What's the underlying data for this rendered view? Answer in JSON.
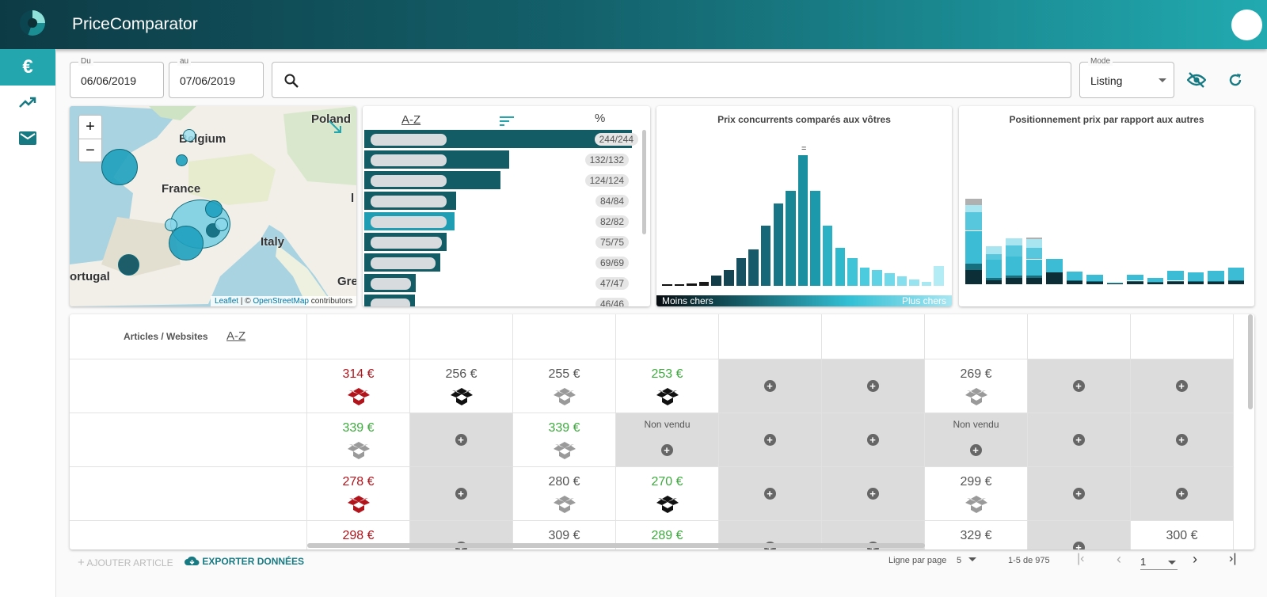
{
  "app": {
    "title": "PriceComparator"
  },
  "icons": {
    "logo": "app-logo-icon",
    "avatar": "user-avatar",
    "euro": "euro-icon",
    "trend": "trending-up-icon",
    "mail": "mail-icon",
    "search": "search-icon",
    "hide": "visibility-off-icon",
    "refresh": "refresh-icon"
  },
  "sidebar": {
    "items": [
      {
        "icon": "euro-icon",
        "label": "€"
      },
      {
        "icon": "trending-up-icon",
        "label": ""
      },
      {
        "icon": "mail-icon",
        "label": ""
      }
    ]
  },
  "filters": {
    "from_label": "Du",
    "from_value": "06/06/2019",
    "to_label": "au",
    "to_value": "07/06/2019",
    "search_placeholder": "",
    "mode_label": "Mode",
    "mode_value": "Listing"
  },
  "map": {
    "labels": {
      "poland": "Poland",
      "belgium": "Belgium",
      "france": "France",
      "italy": "Italy",
      "portugal": "ortugal",
      "gre": "Gre",
      "l": "l"
    },
    "attribution": {
      "leaflet": "Leaflet",
      "sep": " | © ",
      "osm": "OpenStreetMap",
      "contributors": " contributors"
    },
    "zoom_in": "+",
    "zoom_out": "−"
  },
  "ranking": {
    "header_az": "A-Z",
    "header_pct": "%",
    "counts": [
      "244/244",
      "132/132",
      "124/124",
      "84/84",
      "82/82",
      "75/75",
      "69/69",
      "47/47",
      "46/46"
    ],
    "fractions": [
      1.0,
      0.541,
      0.508,
      0.344,
      0.336,
      0.307,
      0.283,
      0.193,
      0.189
    ]
  },
  "chart_left": {
    "title": "Prix concurrents comparés aux vôtres",
    "marker": "=",
    "left_label": "Moins chers",
    "right_label": "Plus chers"
  },
  "chart_data": [
    {
      "type": "bar",
      "title": "Prix concurrents comparés aux vôtres",
      "values": [
        1,
        1.5,
        2,
        3,
        8,
        12,
        21,
        28,
        46,
        63,
        73,
        100,
        73,
        46,
        29,
        21,
        14,
        12,
        10,
        7,
        5,
        3,
        15
      ],
      "colors": [
        "#111111",
        "#111111",
        "#111111",
        "#1a1a1a",
        "#123c48",
        "#134553",
        "#155160",
        "#175b6a",
        "#166778",
        "#177586",
        "#198696",
        "#1a8fa0",
        "#1c9aac",
        "#2bb0c4",
        "#2fb9cd",
        "#3ec3d7",
        "#4ccbdf",
        "#5fd3e5",
        "#72d9ea",
        "#86dfee",
        "#97e3f0",
        "#a8e8f2",
        "#b4ecf5"
      ],
      "xlabel": "",
      "ylabel": ""
    },
    {
      "type": "bar",
      "title": "Positionnement prix par rapport aux autres",
      "categories": [
        "1",
        "2",
        "3",
        "4",
        "5",
        "6",
        "7",
        "8",
        "9",
        "10",
        "11",
        "12",
        "13",
        "14"
      ],
      "series": [
        {
          "values": [
            20,
            6,
            9,
            9,
            17,
            4,
            3,
            1,
            4,
            2,
            4,
            3,
            3,
            5
          ]
        },
        {
          "values": [
            9,
            3,
            3,
            3,
            0,
            2,
            1,
            0,
            1,
            1,
            1,
            1,
            1,
            1
          ]
        },
        {
          "values": [
            46,
            25,
            27,
            23,
            19,
            12,
            9,
            1,
            8,
            6,
            14,
            13,
            15,
            17
          ]
        },
        {
          "values": [
            26,
            8,
            15,
            16,
            0,
            0,
            0,
            0,
            0,
            0,
            0,
            0,
            0,
            0
          ]
        },
        {
          "values": [
            10,
            11,
            10,
            12,
            0,
            0,
            0,
            0,
            0,
            0,
            0,
            0,
            0,
            0
          ]
        },
        {
          "values": [
            9,
            0,
            0,
            3,
            0,
            0,
            0,
            0,
            0,
            0,
            0,
            0,
            0,
            0
          ]
        }
      ],
      "colors": [
        "#0c2f37",
        "#176f7e",
        "#3dbcd5",
        "#56c7dd",
        "#a8e5f0",
        "#b0b0b0"
      ]
    }
  ],
  "chart_right": {
    "title": "Positionnement prix par rapport aux autres"
  },
  "table": {
    "header": "Articles / Websites",
    "rows": [
      {
        "cells": [
          {
            "t": "price",
            "v": "314 €",
            "c": "red",
            "box": "red"
          },
          {
            "t": "price",
            "v": "256 €",
            "c": "gray",
            "box": "black"
          },
          {
            "t": "price",
            "v": "255 €",
            "c": "gray",
            "box": "grey"
          },
          {
            "t": "price",
            "v": "253 €",
            "c": "green",
            "box": "black"
          },
          {
            "t": "add"
          },
          {
            "t": "add"
          },
          {
            "t": "price",
            "v": "269 €",
            "c": "gray",
            "box": "grey"
          },
          {
            "t": "add"
          },
          {
            "t": "add"
          }
        ]
      },
      {
        "cells": [
          {
            "t": "price",
            "v": "339 €",
            "c": "green",
            "box": "grey"
          },
          {
            "t": "add"
          },
          {
            "t": "price",
            "v": "339 €",
            "c": "green",
            "box": "grey"
          },
          {
            "t": "nv",
            "v": "Non vendu"
          },
          {
            "t": "add"
          },
          {
            "t": "add"
          },
          {
            "t": "nv",
            "v": "Non vendu"
          },
          {
            "t": "add"
          },
          {
            "t": "add"
          }
        ]
      },
      {
        "cells": [
          {
            "t": "price",
            "v": "278 €",
            "c": "red",
            "box": "red"
          },
          {
            "t": "add"
          },
          {
            "t": "price",
            "v": "280 €",
            "c": "gray",
            "box": "grey"
          },
          {
            "t": "price",
            "v": "270 €",
            "c": "green",
            "box": "black"
          },
          {
            "t": "add"
          },
          {
            "t": "add"
          },
          {
            "t": "price",
            "v": "299 €",
            "c": "gray",
            "box": "grey"
          },
          {
            "t": "add"
          },
          {
            "t": "add"
          }
        ]
      },
      {
        "cells": [
          {
            "t": "price",
            "v": "298 €",
            "c": "red",
            "box": "none"
          },
          {
            "t": "add"
          },
          {
            "t": "price",
            "v": "309 €",
            "c": "gray",
            "box": "none"
          },
          {
            "t": "price",
            "v": "289 €",
            "c": "green",
            "box": "none"
          },
          {
            "t": "add"
          },
          {
            "t": "add"
          },
          {
            "t": "price",
            "v": "329 €",
            "c": "gray",
            "box": "none"
          },
          {
            "t": "add"
          },
          {
            "t": "price",
            "v": "300 €",
            "c": "gray",
            "box": "none"
          }
        ]
      }
    ]
  },
  "footer": {
    "add_article": "AJOUTER ARTICLE",
    "export": "EXPORTER DONNÉES",
    "rows_per_page_label": "Ligne par page",
    "rows_per_page": "5",
    "range": "1-5 de 975",
    "page": "1"
  }
}
